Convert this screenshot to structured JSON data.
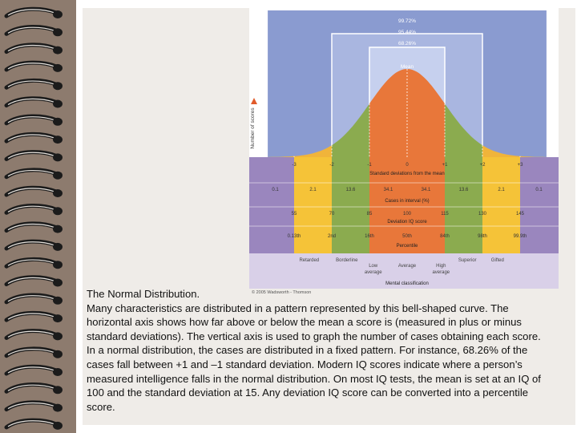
{
  "figure": {
    "y_axis_label": "Number of scores",
    "bands": [
      "99.72%",
      "95.44%",
      "68.26%"
    ],
    "mean_label": "Mean",
    "sd_title": "Standard deviations from the mean",
    "sd_ticks": [
      "-3",
      "-2",
      "-1",
      "0",
      "+1",
      "+2",
      "+3"
    ],
    "cases_title": "Cases in interval (%)",
    "cases_values": [
      "0.1",
      "2.1",
      "13.6",
      "34.1",
      "34.1",
      "13.6",
      "2.1",
      "0.1"
    ],
    "iq_title": "Deviation IQ score",
    "iq_values": [
      "55",
      "70",
      "85",
      "100",
      "115",
      "130",
      "145"
    ],
    "percentile_title": "Percentile",
    "percentile_values": [
      "0.13th",
      "2nd",
      "16th",
      "50th",
      "84th",
      "98th",
      "99.9th"
    ],
    "classification_title": "Mental classification",
    "classifications": [
      "Retarded",
      "Borderline",
      "Low average",
      "Average",
      "High average",
      "Superior",
      "Gifted"
    ],
    "copyright": "© 2005 Wadsworth - Thomson",
    "colors": {
      "outer_band": "#8a9bd0",
      "middle_band": "#a9b6e0",
      "inner_band": "#c6d0ee",
      "center_fill": "#e8773a",
      "mid_fill": "#8bab4f",
      "tail_fill": "#f0b43a",
      "row_purple": "#9a86be",
      "row_yellow": "#f5c338",
      "row_light_purple": "#d9d0e8"
    }
  },
  "caption": {
    "title": "The Normal Distribution.",
    "body": "Many characteristics are distributed in a pattern represented by this bell-shaped curve. The horizontal axis shows how far above or below the mean a score is (measured in plus or minus standard deviations). The vertical axis is used to graph the number of cases obtaining each score. In a normal distribution, the cases are distributed in a fixed pattern. For instance, 68.26% of the cases fall between +1 and –1 standard deviation. Modern IQ scores indicate where a person’s measured intelligence falls in the normal distribution. On most IQ tests, the mean is set at an IQ of 100 and the standard deviation at 15. Any deviation IQ score can be converted into a percentile score."
  }
}
